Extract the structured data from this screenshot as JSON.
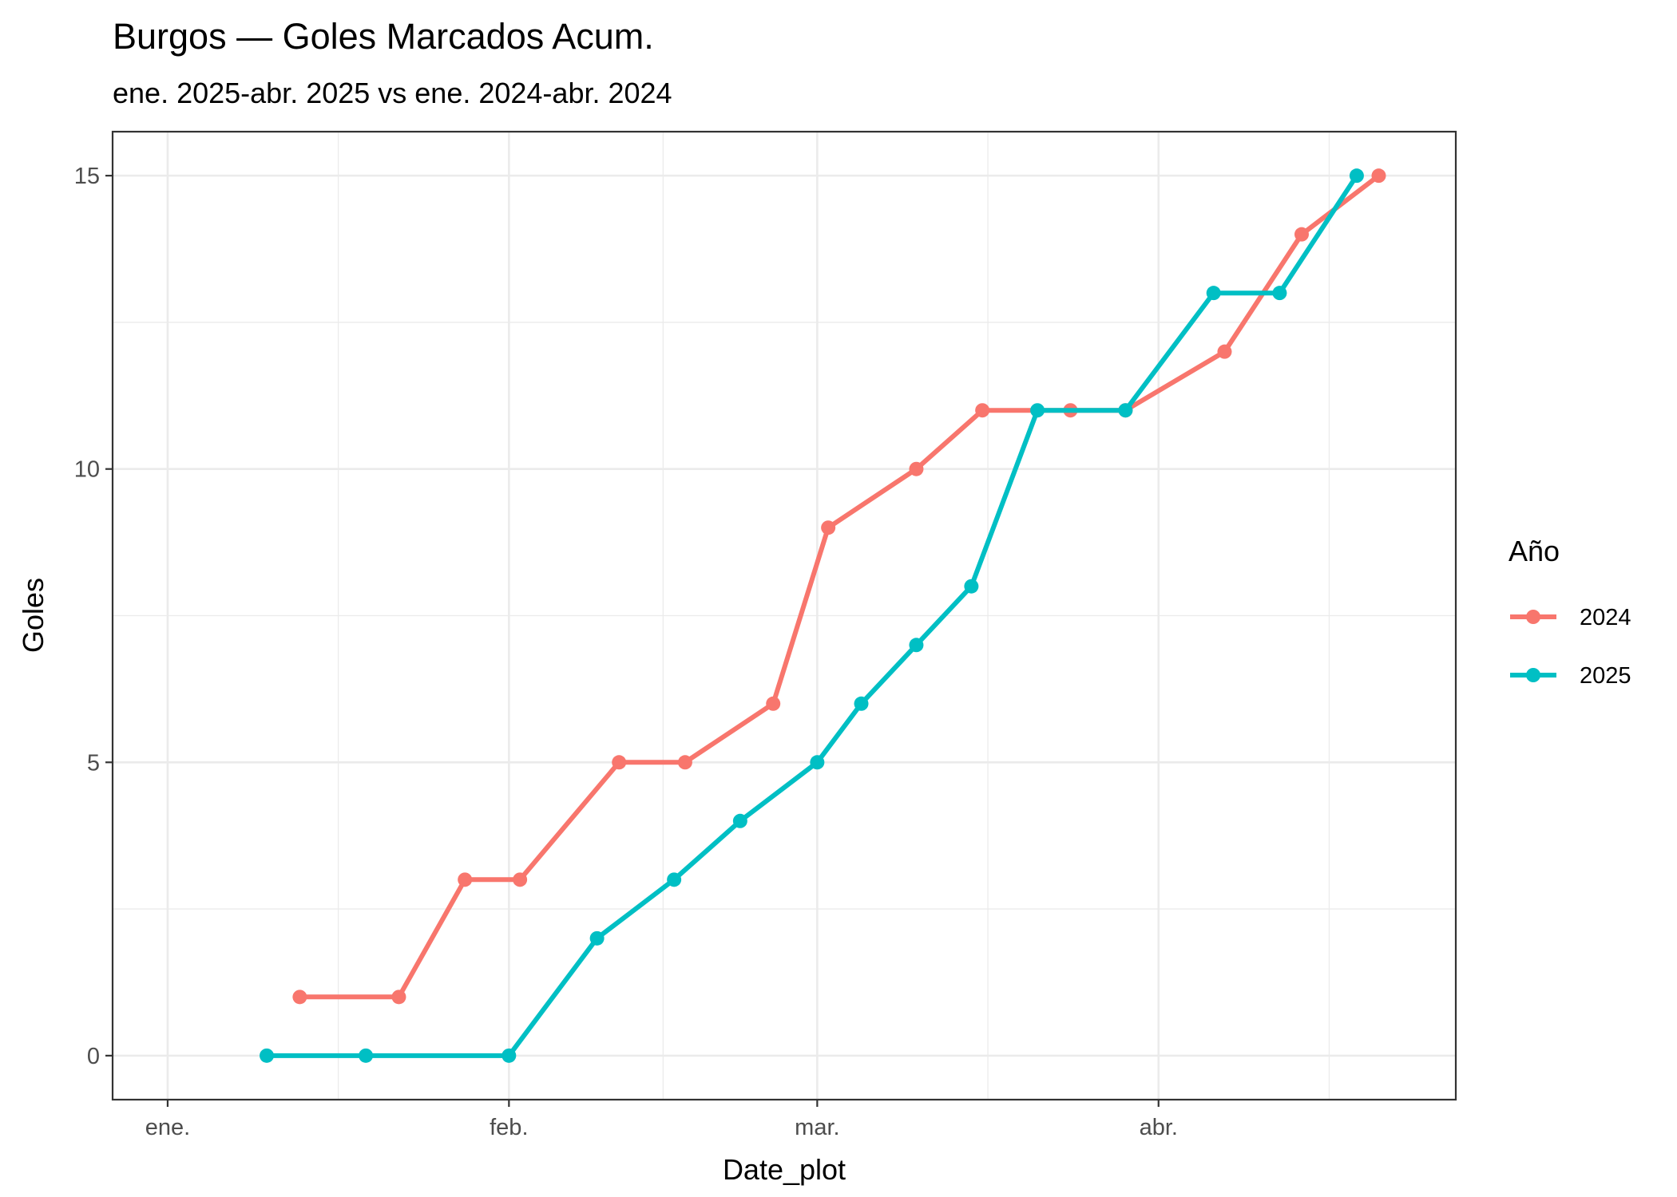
{
  "chart_data": {
    "type": "line",
    "title": "Burgos — Goles Marcados Acum.",
    "subtitle": "ene. 2025-abr. 2025 vs ene. 2024-abr. 2024",
    "xlabel": "Date_plot",
    "ylabel": "Goles",
    "x_type": "date",
    "xlim": [
      "2024-12-27",
      "2025-04-28"
    ],
    "ylim": [
      -0.75,
      15.75
    ],
    "x_ticks": [
      {
        "value": "2025-01-01",
        "label": "ene."
      },
      {
        "value": "2025-02-01",
        "label": "feb."
      },
      {
        "value": "2025-03-01",
        "label": "mar."
      },
      {
        "value": "2025-04-01",
        "label": "abr."
      }
    ],
    "y_ticks": [
      0,
      5,
      10,
      15
    ],
    "grid": true,
    "legend": {
      "title": "Año",
      "position": "right"
    },
    "series": [
      {
        "name": "2024",
        "color": "#F8766D",
        "points": [
          {
            "x": "2025-01-13",
            "y": 1
          },
          {
            "x": "2025-01-22",
            "y": 1
          },
          {
            "x": "2025-01-28",
            "y": 3
          },
          {
            "x": "2025-02-02",
            "y": 3
          },
          {
            "x": "2025-02-11",
            "y": 5
          },
          {
            "x": "2025-02-17",
            "y": 5
          },
          {
            "x": "2025-02-25",
            "y": 6
          },
          {
            "x": "2025-03-02",
            "y": 9
          },
          {
            "x": "2025-03-10",
            "y": 10
          },
          {
            "x": "2025-03-16",
            "y": 11
          },
          {
            "x": "2025-03-24",
            "y": 11
          },
          {
            "x": "2025-03-29",
            "y": 11
          },
          {
            "x": "2025-04-07",
            "y": 12
          },
          {
            "x": "2025-04-14",
            "y": 14
          },
          {
            "x": "2025-04-21",
            "y": 15
          }
        ]
      },
      {
        "name": "2025",
        "color": "#00BFC4",
        "points": [
          {
            "x": "2025-01-10",
            "y": 0
          },
          {
            "x": "2025-01-19",
            "y": 0
          },
          {
            "x": "2025-02-01",
            "y": 0
          },
          {
            "x": "2025-02-09",
            "y": 2
          },
          {
            "x": "2025-02-16",
            "y": 3
          },
          {
            "x": "2025-02-22",
            "y": 4
          },
          {
            "x": "2025-03-01",
            "y": 5
          },
          {
            "x": "2025-03-05",
            "y": 6
          },
          {
            "x": "2025-03-10",
            "y": 7
          },
          {
            "x": "2025-03-15",
            "y": 8
          },
          {
            "x": "2025-03-21",
            "y": 11
          },
          {
            "x": "2025-03-29",
            "y": 11
          },
          {
            "x": "2025-04-06",
            "y": 13
          },
          {
            "x": "2025-04-12",
            "y": 13
          },
          {
            "x": "2025-04-19",
            "y": 15
          }
        ]
      }
    ]
  }
}
